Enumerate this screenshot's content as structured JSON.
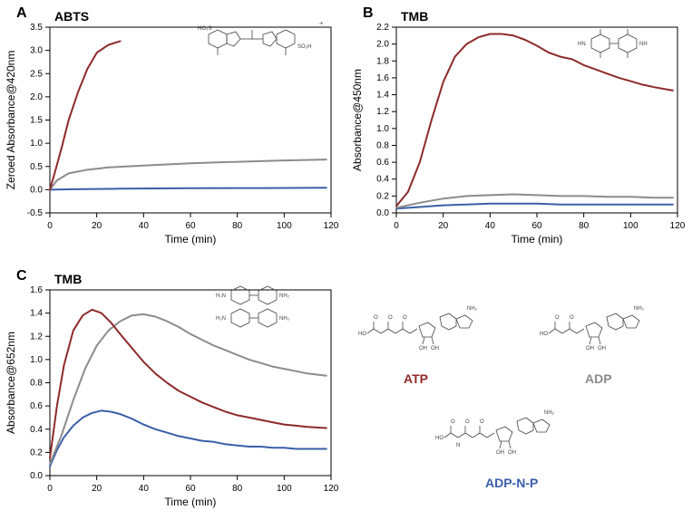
{
  "figure": {
    "background_color": "#ffffff",
    "axis_color": "#000000",
    "tick_fontsize": 10,
    "label_fontsize": 12,
    "panel_label_fontsize": 16,
    "substrate_label_fontsize": 14,
    "line_width": 2
  },
  "series_colors": {
    "ATP": "#8e2a2a",
    "ADP": "#8c8c8c",
    "ADP_N_P": "#3a5fa8"
  },
  "panel_A": {
    "label": "A",
    "substrate": "ABTS",
    "xlabel": "Time (min)",
    "ylabel": "Zeroed Absorbance@420nm",
    "xlim": [
      0,
      120
    ],
    "ylim": [
      -0.5,
      3.5
    ],
    "xticks": [
      0,
      20,
      40,
      60,
      80,
      100,
      120
    ],
    "yticks": [
      -0.5,
      0.0,
      0.5,
      1.0,
      1.5,
      2.0,
      2.5,
      3.0,
      3.5
    ],
    "series": {
      "ATP": [
        [
          0,
          0
        ],
        [
          2,
          0.35
        ],
        [
          5,
          0.9
        ],
        [
          8,
          1.5
        ],
        [
          12,
          2.1
        ],
        [
          16,
          2.6
        ],
        [
          20,
          2.95
        ],
        [
          25,
          3.12
        ],
        [
          30,
          3.2
        ]
      ],
      "ADP": [
        [
          0,
          0
        ],
        [
          3,
          0.2
        ],
        [
          8,
          0.35
        ],
        [
          15,
          0.42
        ],
        [
          25,
          0.48
        ],
        [
          40,
          0.52
        ],
        [
          60,
          0.57
        ],
        [
          80,
          0.6
        ],
        [
          100,
          0.63
        ],
        [
          118,
          0.65
        ]
      ],
      "ADP_N_P": [
        [
          0,
          0
        ],
        [
          10,
          0.01
        ],
        [
          30,
          0.02
        ],
        [
          60,
          0.03
        ],
        [
          90,
          0.035
        ],
        [
          118,
          0.04
        ]
      ]
    },
    "molecule": "ABTS structure"
  },
  "panel_B": {
    "label": "B",
    "substrate": "TMB",
    "xlabel": "Time (min)",
    "ylabel": "Absorbance@450nm",
    "xlim": [
      0,
      120
    ],
    "ylim": [
      0.0,
      2.2
    ],
    "xticks": [
      0,
      20,
      40,
      60,
      80,
      100,
      120
    ],
    "yticks": [
      0.0,
      0.2,
      0.4,
      0.6,
      0.8,
      1.0,
      1.2,
      1.4,
      1.6,
      1.8,
      2.0,
      2.2
    ],
    "series": {
      "ATP": [
        [
          0,
          0.08
        ],
        [
          5,
          0.25
        ],
        [
          10,
          0.6
        ],
        [
          15,
          1.1
        ],
        [
          20,
          1.55
        ],
        [
          25,
          1.85
        ],
        [
          30,
          2.0
        ],
        [
          35,
          2.08
        ],
        [
          40,
          2.12
        ],
        [
          45,
          2.12
        ],
        [
          50,
          2.1
        ],
        [
          55,
          2.05
        ],
        [
          60,
          1.98
        ],
        [
          65,
          1.9
        ],
        [
          70,
          1.85
        ],
        [
          75,
          1.82
        ],
        [
          80,
          1.75
        ],
        [
          85,
          1.7
        ],
        [
          90,
          1.65
        ],
        [
          95,
          1.6
        ],
        [
          100,
          1.56
        ],
        [
          105,
          1.52
        ],
        [
          110,
          1.49
        ],
        [
          118,
          1.45
        ]
      ],
      "ADP": [
        [
          0,
          0.06
        ],
        [
          10,
          0.12
        ],
        [
          20,
          0.17
        ],
        [
          30,
          0.2
        ],
        [
          40,
          0.21
        ],
        [
          50,
          0.22
        ],
        [
          60,
          0.21
        ],
        [
          70,
          0.2
        ],
        [
          80,
          0.2
        ],
        [
          90,
          0.19
        ],
        [
          100,
          0.19
        ],
        [
          110,
          0.18
        ],
        [
          118,
          0.18
        ]
      ],
      "ADP_N_P": [
        [
          0,
          0.05
        ],
        [
          10,
          0.07
        ],
        [
          20,
          0.09
        ],
        [
          30,
          0.1
        ],
        [
          40,
          0.11
        ],
        [
          50,
          0.11
        ],
        [
          60,
          0.11
        ],
        [
          70,
          0.1
        ],
        [
          80,
          0.1
        ],
        [
          90,
          0.1
        ],
        [
          100,
          0.1
        ],
        [
          110,
          0.1
        ],
        [
          118,
          0.1
        ]
      ]
    },
    "molecule": "TMB structure"
  },
  "panel_C": {
    "label": "C",
    "substrate": "TMB",
    "xlabel": "Time (min)",
    "ylabel": "Absorbance@652nm",
    "xlim": [
      0,
      120
    ],
    "ylim": [
      0.0,
      1.6
    ],
    "xticks": [
      0,
      20,
      40,
      60,
      80,
      100,
      120
    ],
    "yticks": [
      0.0,
      0.2,
      0.4,
      0.6,
      0.8,
      1.0,
      1.2,
      1.4,
      1.6
    ],
    "series": {
      "ATP": [
        [
          0,
          0.15
        ],
        [
          3,
          0.6
        ],
        [
          6,
          0.95
        ],
        [
          10,
          1.25
        ],
        [
          14,
          1.38
        ],
        [
          18,
          1.43
        ],
        [
          22,
          1.4
        ],
        [
          26,
          1.32
        ],
        [
          30,
          1.22
        ],
        [
          35,
          1.1
        ],
        [
          40,
          0.98
        ],
        [
          45,
          0.88
        ],
        [
          50,
          0.8
        ],
        [
          55,
          0.73
        ],
        [
          60,
          0.68
        ],
        [
          65,
          0.63
        ],
        [
          70,
          0.59
        ],
        [
          75,
          0.55
        ],
        [
          80,
          0.52
        ],
        [
          85,
          0.5
        ],
        [
          90,
          0.48
        ],
        [
          95,
          0.46
        ],
        [
          100,
          0.44
        ],
        [
          105,
          0.43
        ],
        [
          110,
          0.42
        ],
        [
          118,
          0.41
        ]
      ],
      "ADP": [
        [
          0,
          0.1
        ],
        [
          5,
          0.35
        ],
        [
          10,
          0.65
        ],
        [
          15,
          0.92
        ],
        [
          20,
          1.12
        ],
        [
          25,
          1.25
        ],
        [
          30,
          1.33
        ],
        [
          35,
          1.38
        ],
        [
          40,
          1.39
        ],
        [
          45,
          1.37
        ],
        [
          50,
          1.33
        ],
        [
          55,
          1.28
        ],
        [
          60,
          1.22
        ],
        [
          65,
          1.17
        ],
        [
          70,
          1.12
        ],
        [
          75,
          1.08
        ],
        [
          80,
          1.04
        ],
        [
          85,
          1.0
        ],
        [
          90,
          0.97
        ],
        [
          95,
          0.94
        ],
        [
          100,
          0.92
        ],
        [
          105,
          0.9
        ],
        [
          110,
          0.88
        ],
        [
          118,
          0.86
        ]
      ],
      "ADP_N_P": [
        [
          0,
          0.08
        ],
        [
          3,
          0.22
        ],
        [
          6,
          0.33
        ],
        [
          10,
          0.43
        ],
        [
          14,
          0.5
        ],
        [
          18,
          0.54
        ],
        [
          22,
          0.56
        ],
        [
          26,
          0.55
        ],
        [
          30,
          0.53
        ],
        [
          35,
          0.49
        ],
        [
          40,
          0.44
        ],
        [
          45,
          0.4
        ],
        [
          50,
          0.37
        ],
        [
          55,
          0.34
        ],
        [
          60,
          0.32
        ],
        [
          65,
          0.3
        ],
        [
          70,
          0.29
        ],
        [
          75,
          0.27
        ],
        [
          80,
          0.26
        ],
        [
          85,
          0.25
        ],
        [
          90,
          0.25
        ],
        [
          95,
          0.24
        ],
        [
          100,
          0.24
        ],
        [
          105,
          0.23
        ],
        [
          110,
          0.23
        ],
        [
          118,
          0.23
        ]
      ]
    },
    "molecule": "TMB structure"
  },
  "molecule_labels": {
    "ATP": {
      "text": "ATP",
      "color": "#8e2a2a"
    },
    "ADP": {
      "text": "ADP",
      "color": "#8c8c8c"
    },
    "ADP_N_P": {
      "text": "ADP-N-P",
      "color": "#3a5fa8"
    }
  }
}
